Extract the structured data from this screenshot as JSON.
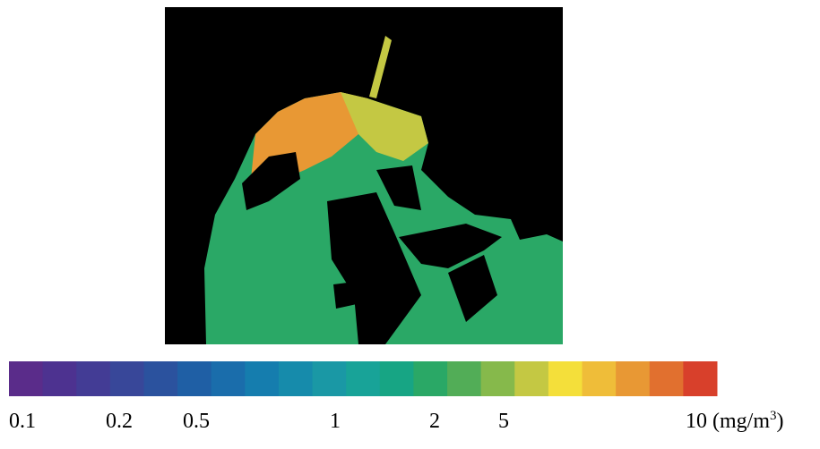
{
  "colorbar": {
    "colors": [
      "#5a2c8a",
      "#4d3290",
      "#433c95",
      "#384799",
      "#2b529e",
      "#1f5fa5",
      "#1a6dab",
      "#157dae",
      "#168bab",
      "#1a98a5",
      "#18a398",
      "#17a584",
      "#2aa866",
      "#52ad57",
      "#86b94b",
      "#c4c843",
      "#f4df3a",
      "#efbd39",
      "#e89834",
      "#e1702f",
      "#d8402b"
    ],
    "labels": [
      "0.1",
      "0.2",
      "0.5",
      "1",
      "2",
      "5",
      "10"
    ],
    "unit": [
      "(mg/m",
      "3",
      ")"
    ]
  }
}
